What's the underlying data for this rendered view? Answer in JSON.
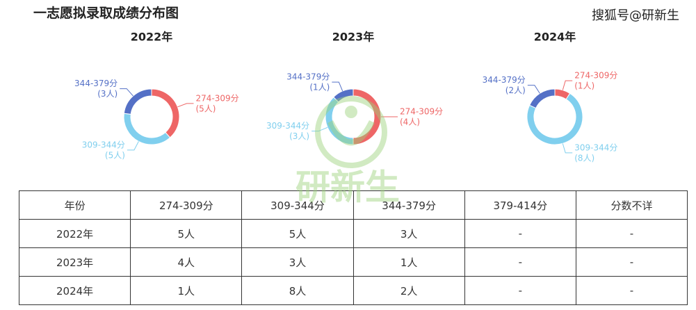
{
  "title": "一志愿拟录取成绩分布图",
  "source": "搜狐号@研新生",
  "watermark": "研新生",
  "chart_data": [
    {
      "type": "pie",
      "title": "2022年",
      "categories": [
        "274-309分",
        "309-344分",
        "344-379分"
      ],
      "values": [
        5,
        5,
        3
      ],
      "value_labels": [
        "(5人)",
        "(5人)",
        "(3人)"
      ],
      "colors": [
        "#ee6666",
        "#80cfee",
        "#5470c6"
      ]
    },
    {
      "type": "pie",
      "title": "2023年",
      "categories": [
        "274-309分",
        "309-344分",
        "344-379分"
      ],
      "values": [
        4,
        3,
        1
      ],
      "value_labels": [
        "(4人)",
        "(3人)",
        "(1人)"
      ],
      "colors": [
        "#ee6666",
        "#80cfee",
        "#5470c6"
      ]
    },
    {
      "type": "pie",
      "title": "2024年",
      "categories": [
        "274-309分",
        "309-344分",
        "344-379分"
      ],
      "values": [
        1,
        8,
        2
      ],
      "value_labels": [
        "(1人)",
        "(8人)",
        "(2人)"
      ],
      "colors": [
        "#ee6666",
        "#80cfee",
        "#5470c6"
      ]
    }
  ],
  "table": {
    "header": [
      "年份",
      "274-309分",
      "309-344分",
      "344-379分",
      "379-414分",
      "分数不详"
    ],
    "rows": [
      [
        "2022年",
        "5人",
        "5人",
        "3人",
        "-",
        "-"
      ],
      [
        "2023年",
        "4人",
        "3人",
        "1人",
        "-",
        "-"
      ],
      [
        "2024年",
        "1人",
        "8人",
        "2人",
        "-",
        "-"
      ]
    ]
  }
}
